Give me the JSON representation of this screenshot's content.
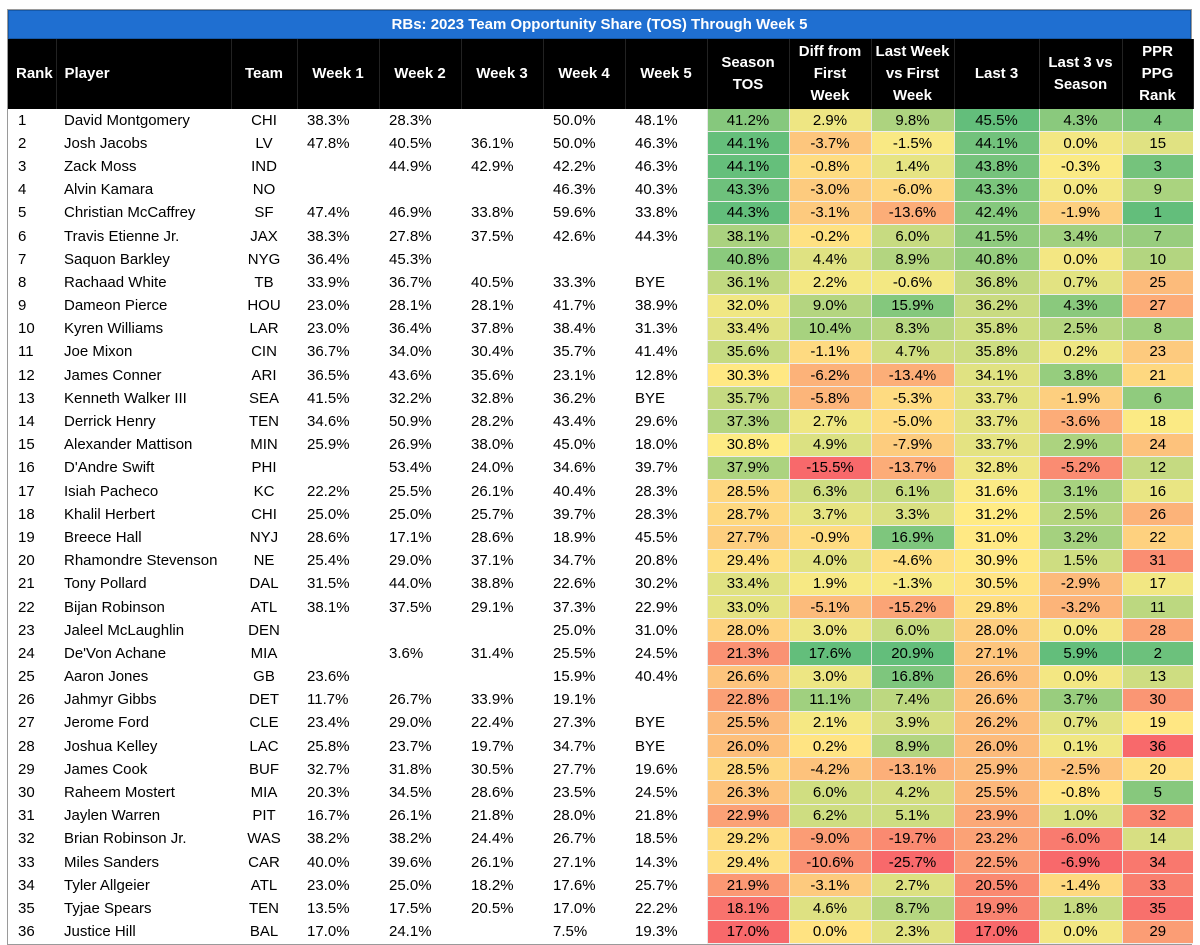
{
  "title": "RBs: 2023 Team Opportunity Share (TOS) Through Week 5",
  "headers": {
    "rank": "Rank",
    "player": "Player",
    "team": "Team",
    "week1": "Week 1",
    "week2": "Week 2",
    "week3": "Week 3",
    "week4": "Week 4",
    "week5": "Week 5",
    "season_tos_l1": "Season",
    "season_tos_l2": "TOS",
    "diff_l1": "Diff from",
    "diff_l2": "First",
    "diff_l3": "Week",
    "lw_l1": "Last Week",
    "lw_l2": "vs First",
    "lw_l3": "Week",
    "last3": "Last 3",
    "l3s_l1": "Last 3 vs",
    "l3s_l2": "Season",
    "ppr_l1": "PPR PPG",
    "ppr_l2": "Rank"
  },
  "rows": [
    [
      "1",
      "David Montgomery",
      "CHI",
      "38.3%",
      "28.3%",
      "",
      "50.0%",
      "48.1%",
      "41.2%",
      "2.9%",
      "9.8%",
      "45.5%",
      "4.3%",
      "4"
    ],
    [
      "2",
      "Josh Jacobs",
      "LV",
      "47.8%",
      "40.5%",
      "36.1%",
      "50.0%",
      "46.3%",
      "44.1%",
      "-3.7%",
      "-1.5%",
      "44.1%",
      "0.0%",
      "15"
    ],
    [
      "3",
      "Zack Moss",
      "IND",
      "",
      "44.9%",
      "42.9%",
      "42.2%",
      "46.3%",
      "44.1%",
      "-0.8%",
      "1.4%",
      "43.8%",
      "-0.3%",
      "3"
    ],
    [
      "4",
      "Alvin Kamara",
      "NO",
      "",
      "",
      "",
      "46.3%",
      "40.3%",
      "43.3%",
      "-3.0%",
      "-6.0%",
      "43.3%",
      "0.0%",
      "9"
    ],
    [
      "5",
      "Christian McCaffrey",
      "SF",
      "47.4%",
      "46.9%",
      "33.8%",
      "59.6%",
      "33.8%",
      "44.3%",
      "-3.1%",
      "-13.6%",
      "42.4%",
      "-1.9%",
      "1"
    ],
    [
      "6",
      "Travis Etienne Jr.",
      "JAX",
      "38.3%",
      "27.8%",
      "37.5%",
      "42.6%",
      "44.3%",
      "38.1%",
      "-0.2%",
      "6.0%",
      "41.5%",
      "3.4%",
      "7"
    ],
    [
      "7",
      "Saquon Barkley",
      "NYG",
      "36.4%",
      "45.3%",
      "",
      "",
      "",
      "40.8%",
      "4.4%",
      "8.9%",
      "40.8%",
      "0.0%",
      "10"
    ],
    [
      "8",
      "Rachaad White",
      "TB",
      "33.9%",
      "36.7%",
      "40.5%",
      "33.3%",
      "BYE",
      "36.1%",
      "2.2%",
      "-0.6%",
      "36.8%",
      "0.7%",
      "25"
    ],
    [
      "9",
      "Dameon Pierce",
      "HOU",
      "23.0%",
      "28.1%",
      "28.1%",
      "41.7%",
      "38.9%",
      "32.0%",
      "9.0%",
      "15.9%",
      "36.2%",
      "4.3%",
      "27"
    ],
    [
      "10",
      "Kyren Williams",
      "LAR",
      "23.0%",
      "36.4%",
      "37.8%",
      "38.4%",
      "31.3%",
      "33.4%",
      "10.4%",
      "8.3%",
      "35.8%",
      "2.5%",
      "8"
    ],
    [
      "11",
      "Joe Mixon",
      "CIN",
      "36.7%",
      "34.0%",
      "30.4%",
      "35.7%",
      "41.4%",
      "35.6%",
      "-1.1%",
      "4.7%",
      "35.8%",
      "0.2%",
      "23"
    ],
    [
      "12",
      "James Conner",
      "ARI",
      "36.5%",
      "43.6%",
      "35.6%",
      "23.1%",
      "12.8%",
      "30.3%",
      "-6.2%",
      "-13.4%",
      "34.1%",
      "3.8%",
      "21"
    ],
    [
      "13",
      "Kenneth Walker III",
      "SEA",
      "41.5%",
      "32.2%",
      "32.8%",
      "36.2%",
      "BYE",
      "35.7%",
      "-5.8%",
      "-5.3%",
      "33.7%",
      "-1.9%",
      "6"
    ],
    [
      "14",
      "Derrick Henry",
      "TEN",
      "34.6%",
      "50.9%",
      "28.2%",
      "43.4%",
      "29.6%",
      "37.3%",
      "2.7%",
      "-5.0%",
      "33.7%",
      "-3.6%",
      "18"
    ],
    [
      "15",
      "Alexander Mattison",
      "MIN",
      "25.9%",
      "26.9%",
      "38.0%",
      "45.0%",
      "18.0%",
      "30.8%",
      "4.9%",
      "-7.9%",
      "33.7%",
      "2.9%",
      "24"
    ],
    [
      "16",
      "D'Andre Swift",
      "PHI",
      "",
      "53.4%",
      "24.0%",
      "34.6%",
      "39.7%",
      "37.9%",
      "-15.5%",
      "-13.7%",
      "32.8%",
      "-5.2%",
      "12"
    ],
    [
      "17",
      "Isiah Pacheco",
      "KC",
      "22.2%",
      "25.5%",
      "26.1%",
      "40.4%",
      "28.3%",
      "28.5%",
      "6.3%",
      "6.1%",
      "31.6%",
      "3.1%",
      "16"
    ],
    [
      "18",
      "Khalil Herbert",
      "CHI",
      "25.0%",
      "25.0%",
      "25.7%",
      "39.7%",
      "28.3%",
      "28.7%",
      "3.7%",
      "3.3%",
      "31.2%",
      "2.5%",
      "26"
    ],
    [
      "19",
      "Breece Hall",
      "NYJ",
      "28.6%",
      "17.1%",
      "28.6%",
      "18.9%",
      "45.5%",
      "27.7%",
      "-0.9%",
      "16.9%",
      "31.0%",
      "3.2%",
      "22"
    ],
    [
      "20",
      "Rhamondre Stevenson",
      "NE",
      "25.4%",
      "29.0%",
      "37.1%",
      "34.7%",
      "20.8%",
      "29.4%",
      "4.0%",
      "-4.6%",
      "30.9%",
      "1.5%",
      "31"
    ],
    [
      "21",
      "Tony Pollard",
      "DAL",
      "31.5%",
      "44.0%",
      "38.8%",
      "22.6%",
      "30.2%",
      "33.4%",
      "1.9%",
      "-1.3%",
      "30.5%",
      "-2.9%",
      "17"
    ],
    [
      "22",
      "Bijan Robinson",
      "ATL",
      "38.1%",
      "37.5%",
      "29.1%",
      "37.3%",
      "22.9%",
      "33.0%",
      "-5.1%",
      "-15.2%",
      "29.8%",
      "-3.2%",
      "11"
    ],
    [
      "23",
      "Jaleel McLaughlin",
      "DEN",
      "",
      "",
      "",
      "25.0%",
      "31.0%",
      "28.0%",
      "3.0%",
      "6.0%",
      "28.0%",
      "0.0%",
      "28"
    ],
    [
      "24",
      "De'Von Achane",
      "MIA",
      "",
      "3.6%",
      "31.4%",
      "25.5%",
      "24.5%",
      "21.3%",
      "17.6%",
      "20.9%",
      "27.1%",
      "5.9%",
      "2"
    ],
    [
      "25",
      "Aaron Jones",
      "GB",
      "23.6%",
      "",
      "",
      "15.9%",
      "40.4%",
      "26.6%",
      "3.0%",
      "16.8%",
      "26.6%",
      "0.0%",
      "13"
    ],
    [
      "26",
      "Jahmyr Gibbs",
      "DET",
      "11.7%",
      "26.7%",
      "33.9%",
      "19.1%",
      "",
      "22.8%",
      "11.1%",
      "7.4%",
      "26.6%",
      "3.7%",
      "30"
    ],
    [
      "27",
      "Jerome Ford",
      "CLE",
      "23.4%",
      "29.0%",
      "22.4%",
      "27.3%",
      "BYE",
      "25.5%",
      "2.1%",
      "3.9%",
      "26.2%",
      "0.7%",
      "19"
    ],
    [
      "28",
      "Joshua Kelley",
      "LAC",
      "25.8%",
      "23.7%",
      "19.7%",
      "34.7%",
      "BYE",
      "26.0%",
      "0.2%",
      "8.9%",
      "26.0%",
      "0.1%",
      "36"
    ],
    [
      "29",
      "James Cook",
      "BUF",
      "32.7%",
      "31.8%",
      "30.5%",
      "27.7%",
      "19.6%",
      "28.5%",
      "-4.2%",
      "-13.1%",
      "25.9%",
      "-2.5%",
      "20"
    ],
    [
      "30",
      "Raheem Mostert",
      "MIA",
      "20.3%",
      "34.5%",
      "28.6%",
      "23.5%",
      "24.5%",
      "26.3%",
      "6.0%",
      "4.2%",
      "25.5%",
      "-0.8%",
      "5"
    ],
    [
      "31",
      "Jaylen Warren",
      "PIT",
      "16.7%",
      "26.1%",
      "21.8%",
      "28.0%",
      "21.8%",
      "22.9%",
      "6.2%",
      "5.1%",
      "23.9%",
      "1.0%",
      "32"
    ],
    [
      "32",
      "Brian Robinson Jr.",
      "WAS",
      "38.2%",
      "38.2%",
      "24.4%",
      "26.7%",
      "18.5%",
      "29.2%",
      "-9.0%",
      "-19.7%",
      "23.2%",
      "-6.0%",
      "14"
    ],
    [
      "33",
      "Miles Sanders",
      "CAR",
      "40.0%",
      "39.6%",
      "26.1%",
      "27.1%",
      "14.3%",
      "29.4%",
      "-10.6%",
      "-25.7%",
      "22.5%",
      "-6.9%",
      "34"
    ],
    [
      "34",
      "Tyler Allgeier",
      "ATL",
      "23.0%",
      "25.0%",
      "18.2%",
      "17.6%",
      "25.7%",
      "21.9%",
      "-3.1%",
      "2.7%",
      "20.5%",
      "-1.4%",
      "33"
    ],
    [
      "35",
      "Tyjae Spears",
      "TEN",
      "13.5%",
      "17.5%",
      "20.5%",
      "17.0%",
      "22.2%",
      "18.1%",
      "4.6%",
      "8.7%",
      "19.9%",
      "1.8%",
      "35"
    ],
    [
      "36",
      "Justice Hill",
      "BAL",
      "17.0%",
      "24.1%",
      "",
      "7.5%",
      "19.3%",
      "17.0%",
      "0.0%",
      "2.3%",
      "17.0%",
      "0.0%",
      "29"
    ]
  ],
  "colors": {
    "title_bg": "#1f6fd1",
    "header_bg": "#000000",
    "scale_low": "#f8696b",
    "scale_mid": "#ffeb84",
    "scale_high": "#63be7b"
  }
}
